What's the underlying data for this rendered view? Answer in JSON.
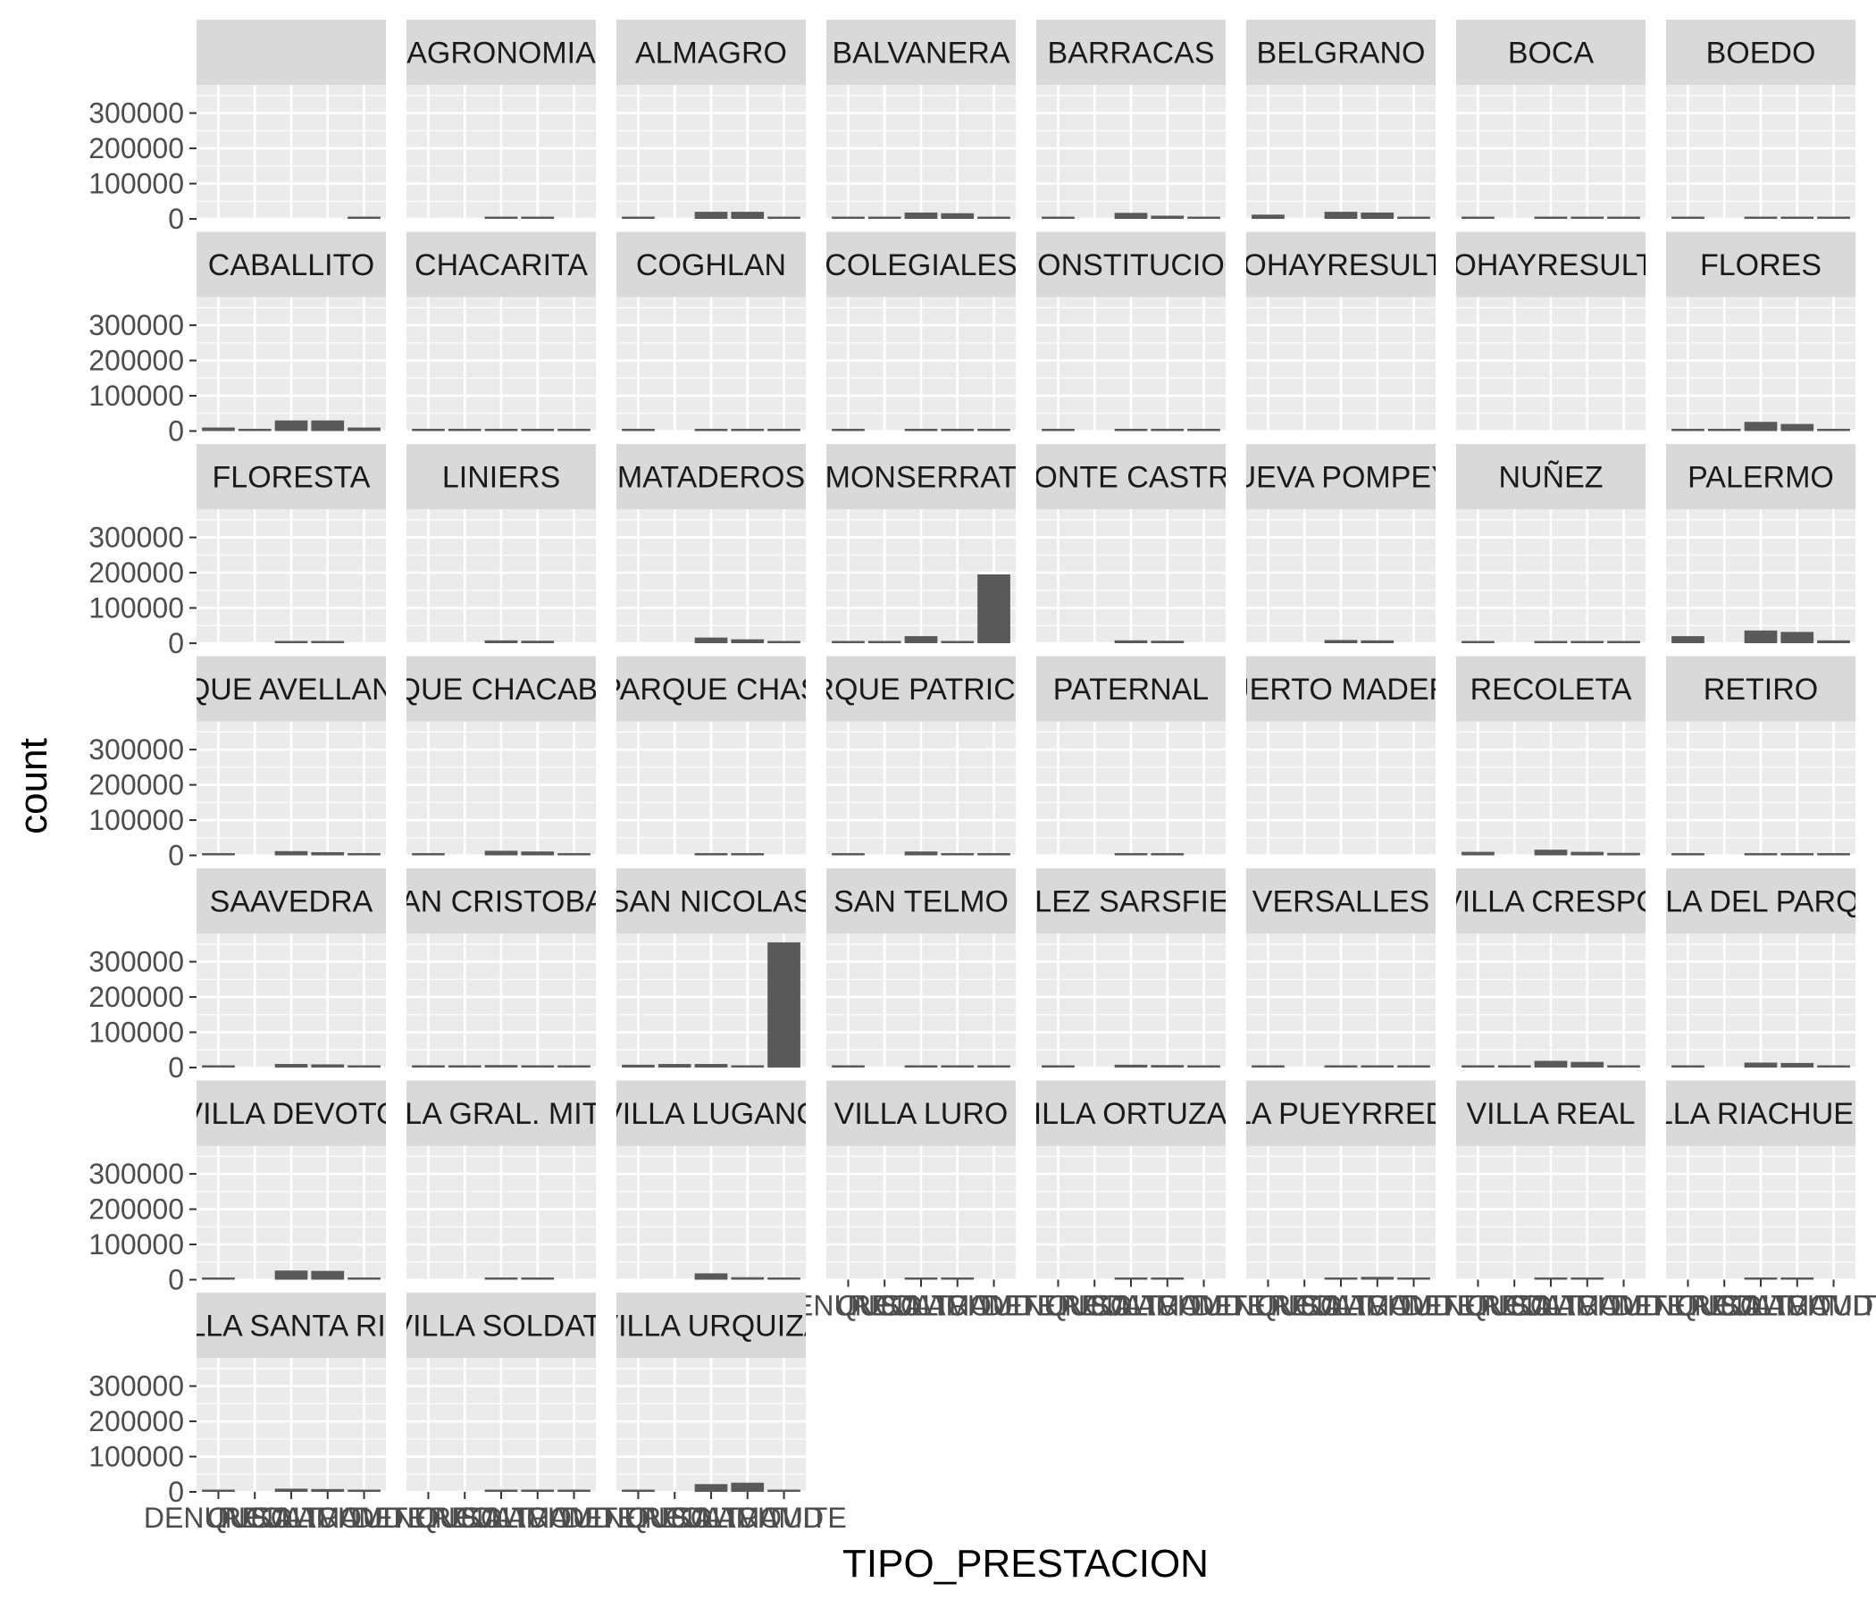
{
  "chart_data": {
    "type": "bar",
    "layout": "facet_wrap",
    "xlabel": "TIPO_PRESTACION",
    "ylabel": "count",
    "ylim": [
      0,
      380000
    ],
    "yticks": [
      0,
      100000,
      200000,
      300000
    ],
    "categories": [
      "DENUNCIA",
      "QUEJA",
      "RECLAMO",
      "SOLICITUD",
      "TRAMITE"
    ],
    "x_tick_text_overlapped": "DENQUEJRECLAMOSOLICITUDTRAMITE",
    "grid": true,
    "panels": [
      {
        "title": "",
        "values": [
          0,
          0,
          0,
          0,
          5000
        ]
      },
      {
        "title": "AGRONOMIA",
        "values": [
          0,
          0,
          2000,
          2000,
          0
        ]
      },
      {
        "title": "ALMAGRO",
        "values": [
          3000,
          0,
          20000,
          20000,
          4000
        ]
      },
      {
        "title": "BALVANERA",
        "values": [
          5000,
          2000,
          18000,
          16000,
          5000
        ]
      },
      {
        "title": "BARRACAS",
        "values": [
          1500,
          0,
          17000,
          9000,
          3000
        ]
      },
      {
        "title": "BELGRANO",
        "values": [
          12000,
          0,
          20000,
          18000,
          6000
        ]
      },
      {
        "title": "BOCA",
        "values": [
          1000,
          0,
          4000,
          3000,
          2000
        ]
      },
      {
        "title": "BOEDO",
        "values": [
          1500,
          0,
          6000,
          6000,
          1500
        ]
      },
      {
        "title": "CABALLITO",
        "values": [
          10000,
          2000,
          30000,
          30000,
          10000
        ]
      },
      {
        "title": "CHACARITA",
        "values": [
          1000,
          1000,
          4000,
          3000,
          1000
        ]
      },
      {
        "title": "COGHLAN",
        "values": [
          1000,
          0,
          3000,
          3000,
          1000
        ]
      },
      {
        "title": "COLEGIALES",
        "values": [
          2000,
          0,
          6000,
          6000,
          1000
        ]
      },
      {
        "title": "CONSTITUCION",
        "values": [
          2000,
          0,
          5000,
          4000,
          1000
        ]
      },
      {
        "title": "CORNOHAYRESULTADOS",
        "values": [
          0,
          0,
          0,
          0,
          0
        ]
      },
      {
        "title": "CORNOHAYRESULTADOS",
        "values": [
          0,
          0,
          0,
          0,
          0
        ]
      },
      {
        "title": "FLORES",
        "values": [
          6000,
          1000,
          26000,
          20000,
          6000
        ]
      },
      {
        "title": "FLORESTA",
        "values": [
          0,
          0,
          5000,
          5000,
          0
        ]
      },
      {
        "title": "LINIERS",
        "values": [
          0,
          0,
          8000,
          7000,
          0
        ]
      },
      {
        "title": "MATADEROS",
        "values": [
          0,
          0,
          16000,
          11000,
          2000
        ]
      },
      {
        "title": "MONSERRAT",
        "values": [
          2000,
          2000,
          20000,
          5000,
          195000
        ]
      },
      {
        "title": "MONTE CASTRO",
        "values": [
          0,
          0,
          8000,
          7000,
          0
        ]
      },
      {
        "title": "NUEVA POMPEYA",
        "values": [
          0,
          0,
          9000,
          8000,
          0
        ]
      },
      {
        "title": "NUÑEZ",
        "values": [
          1000,
          0,
          5000,
          5000,
          1000
        ]
      },
      {
        "title": "PALERMO",
        "values": [
          20000,
          0,
          36000,
          32000,
          8000
        ]
      },
      {
        "title": "PARQUE AVELLANEDA",
        "values": [
          1000,
          0,
          12000,
          9000,
          1000
        ]
      },
      {
        "title": "PARQUE CHACABUCO",
        "values": [
          1000,
          0,
          13000,
          11000,
          2000
        ]
      },
      {
        "title": "PARQUE CHAS",
        "values": [
          0,
          0,
          4000,
          3000,
          0
        ]
      },
      {
        "title": "PARQUE PATRICIOS",
        "values": [
          1000,
          0,
          11000,
          5000,
          3000
        ]
      },
      {
        "title": "PATERNAL",
        "values": [
          0,
          0,
          4000,
          4000,
          0
        ]
      },
      {
        "title": "PUERTO MADERO",
        "values": [
          0,
          0,
          0,
          0,
          0
        ]
      },
      {
        "title": "RECOLETA",
        "values": [
          10000,
          0,
          16000,
          10000,
          7000
        ]
      },
      {
        "title": "RETIRO",
        "values": [
          3000,
          0,
          4000,
          2000,
          5000
        ]
      },
      {
        "title": "SAAVEDRA",
        "values": [
          1000,
          0,
          10000,
          9000,
          1000
        ]
      },
      {
        "title": "SAN CRISTOBAL",
        "values": [
          1000,
          1000,
          7000,
          6000,
          1000
        ]
      },
      {
        "title": "SAN NICOLAS",
        "values": [
          8000,
          10000,
          10000,
          4000,
          355000
        ]
      },
      {
        "title": "SAN TELMO",
        "values": [
          1000,
          0,
          3000,
          2000,
          2000
        ]
      },
      {
        "title": "VELEZ SARSFIELD",
        "values": [
          1000,
          0,
          8000,
          7000,
          1000
        ]
      },
      {
        "title": "VERSALLES",
        "values": [
          1000,
          0,
          4000,
          4000,
          1000
        ]
      },
      {
        "title": "VILLA CRESPO",
        "values": [
          3000,
          1000,
          19000,
          16000,
          4000
        ]
      },
      {
        "title": "VILLA DEL PARQUE",
        "values": [
          2000,
          0,
          14000,
          13000,
          2000
        ]
      },
      {
        "title": "VILLA DEVOTO",
        "values": [
          2000,
          0,
          26000,
          25000,
          2000
        ]
      },
      {
        "title": "VILLA GRAL. MITRE",
        "values": [
          0,
          0,
          6000,
          5000,
          0
        ]
      },
      {
        "title": "VILLA LUGANO",
        "values": [
          0,
          0,
          18000,
          7000,
          2000
        ]
      },
      {
        "title": "VILLA LURO",
        "values": [
          0,
          0,
          6000,
          5000,
          0
        ]
      },
      {
        "title": "VILLA ORTUZAR",
        "values": [
          0,
          0,
          4000,
          4000,
          0
        ]
      },
      {
        "title": "VILLA PUEYRREDON",
        "values": [
          0,
          0,
          6000,
          8000,
          2000
        ]
      },
      {
        "title": "VILLA REAL",
        "values": [
          0,
          0,
          4000,
          3000,
          0
        ]
      },
      {
        "title": "VILLA RIACHUELO",
        "values": [
          0,
          0,
          3000,
          1000,
          0
        ]
      },
      {
        "title": "VILLA SANTA RITA",
        "values": [
          1000,
          0,
          9000,
          8000,
          1000
        ]
      },
      {
        "title": "VILLA SOLDATI",
        "values": [
          0,
          0,
          6000,
          3000,
          1000
        ]
      },
      {
        "title": "VILLA URQUIZA",
        "values": [
          4000,
          0,
          22000,
          26000,
          5000
        ]
      }
    ]
  }
}
